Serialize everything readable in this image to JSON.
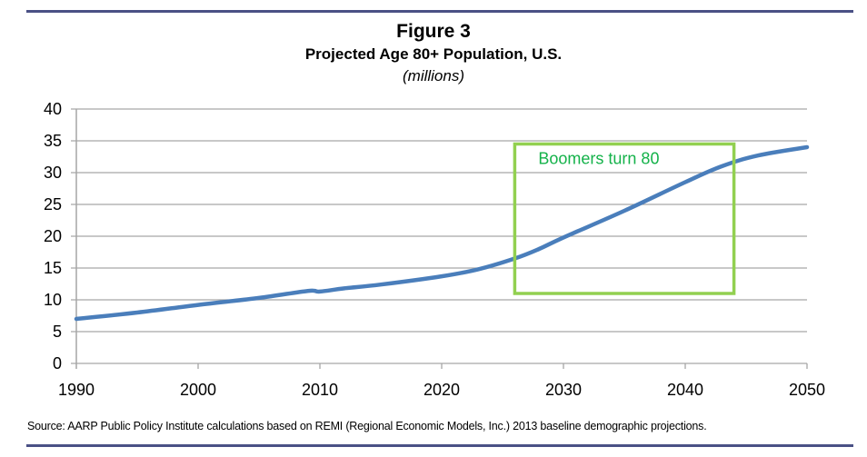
{
  "figure": {
    "label": "Figure 3",
    "title": "Projected Age 80+ Population, U.S.",
    "subtitle": "(millions)",
    "source": "Source: AARP Public Policy Institute calculations based on REMI (Regional Economic Models, Inc.) 2013 baseline demographic projections."
  },
  "colors": {
    "line": "#4a7ebb",
    "grid": "#a6a6a6",
    "annotation_box": "#92d050",
    "annotation_text": "#14b24a",
    "rule": "#4a5185"
  },
  "chart_data": {
    "type": "line",
    "title": "Projected Age 80+ Population, U.S.",
    "subtitle": "(millions)",
    "xlabel": "",
    "ylabel": "",
    "xlim": [
      1990,
      2050
    ],
    "ylim": [
      0,
      40
    ],
    "x_ticks": [
      1990,
      2000,
      2010,
      2020,
      2030,
      2040,
      2050
    ],
    "y_ticks": [
      0,
      5,
      10,
      15,
      20,
      25,
      30,
      35,
      40
    ],
    "grid": true,
    "legend": "none",
    "series": [
      {
        "name": "Age 80+ population (millions)",
        "x": [
          1990,
          1995,
          2000,
          2005,
          2009,
          2010,
          2012,
          2015,
          2020,
          2023,
          2026,
          2028,
          2030,
          2035,
          2040,
          2043,
          2046,
          2050
        ],
        "values": [
          7.0,
          8.0,
          9.2,
          10.3,
          11.4,
          11.3,
          11.8,
          12.4,
          13.7,
          14.8,
          16.5,
          18.0,
          19.8,
          24.0,
          28.5,
          31.0,
          32.7,
          34.0
        ]
      }
    ],
    "annotations": [
      {
        "type": "box",
        "label": "Boomers turn 80",
        "x_range": [
          2026,
          2044
        ],
        "y_range": [
          11,
          34.5
        ]
      }
    ]
  }
}
